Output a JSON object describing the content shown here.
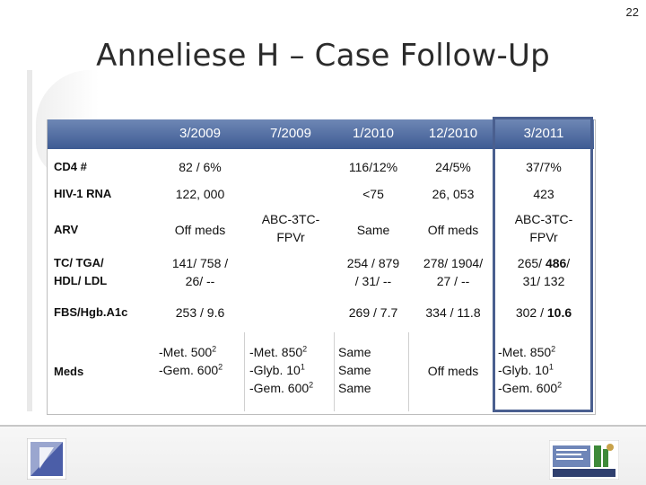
{
  "slide": {
    "number": "22",
    "title": "Anneliese H – Case Follow-Up"
  },
  "table": {
    "headers": [
      "3/2009",
      "7/2009",
      "1/2010",
      "12/2010",
      "3/2011"
    ],
    "rows": {
      "cd4": {
        "label": "CD4 #",
        "c1": "82 / 6%",
        "c3": "116/12%",
        "c4": "24/5%",
        "c5": "37/7%"
      },
      "rna": {
        "label": "HIV-1 RNA",
        "c1": "122, 000",
        "c3": "<75",
        "c4": "26, 053",
        "c5": "423"
      },
      "arv": {
        "label": "ARV",
        "c1": "Off meds",
        "c2a": "ABC-3TC-",
        "c2b": "FPVr",
        "c3": "Same",
        "c4": "Off meds",
        "c5a": "ABC-3TC-",
        "c5b": "FPVr"
      },
      "lipids": {
        "label1": "TC/ TGA/",
        "label2": "HDL/ LDL",
        "c1a": "141/ 758 /",
        "c1b": "26/ --",
        "c3a": "254 / 879",
        "c3b": "/ 31/ --",
        "c4a": "278/ 1904/",
        "c4b": "27 / --",
        "c5a_pre": "265/ ",
        "c5a_bold": "486",
        "c5a_post": "/",
        "c5b": "31/ 132"
      },
      "fbs": {
        "label": "FBS/Hgb.A1c",
        "c1": "253 / 9.6",
        "c3": "269 / 7.7",
        "c4": "334 / 11.8",
        "c5_pre": "302 / ",
        "c5_bold": "10.6"
      },
      "meds": {
        "label": "Meds",
        "c1": {
          "l1": "-Met. 500",
          "s1": "2",
          "l2": "-Gem. 600",
          "s2": "2"
        },
        "c2": {
          "l1": "-Met. 850",
          "s1": "2",
          "l2": "-Glyb. 10",
          "s2": "1",
          "l3": "-Gem. 600",
          "s3": "2"
        },
        "c3": {
          "l1": "Same",
          "l2": "Same",
          "l3": "Same"
        },
        "c4": "Off meds",
        "c5": {
          "l1": "-Met. 850",
          "s1": "2",
          "l2": "-Glyb. 10",
          "s2": "1",
          "l3": "-Gem. 600",
          "s3": "2"
        }
      }
    }
  },
  "logos": {
    "left": "aids-ribbon-logo-icon",
    "right": "arizona-aids-education-training-center-logo"
  },
  "colors": {
    "header_top": "#6e87b5",
    "header_bottom": "#3e5b93",
    "highlight_border": "#4a5f8f"
  }
}
